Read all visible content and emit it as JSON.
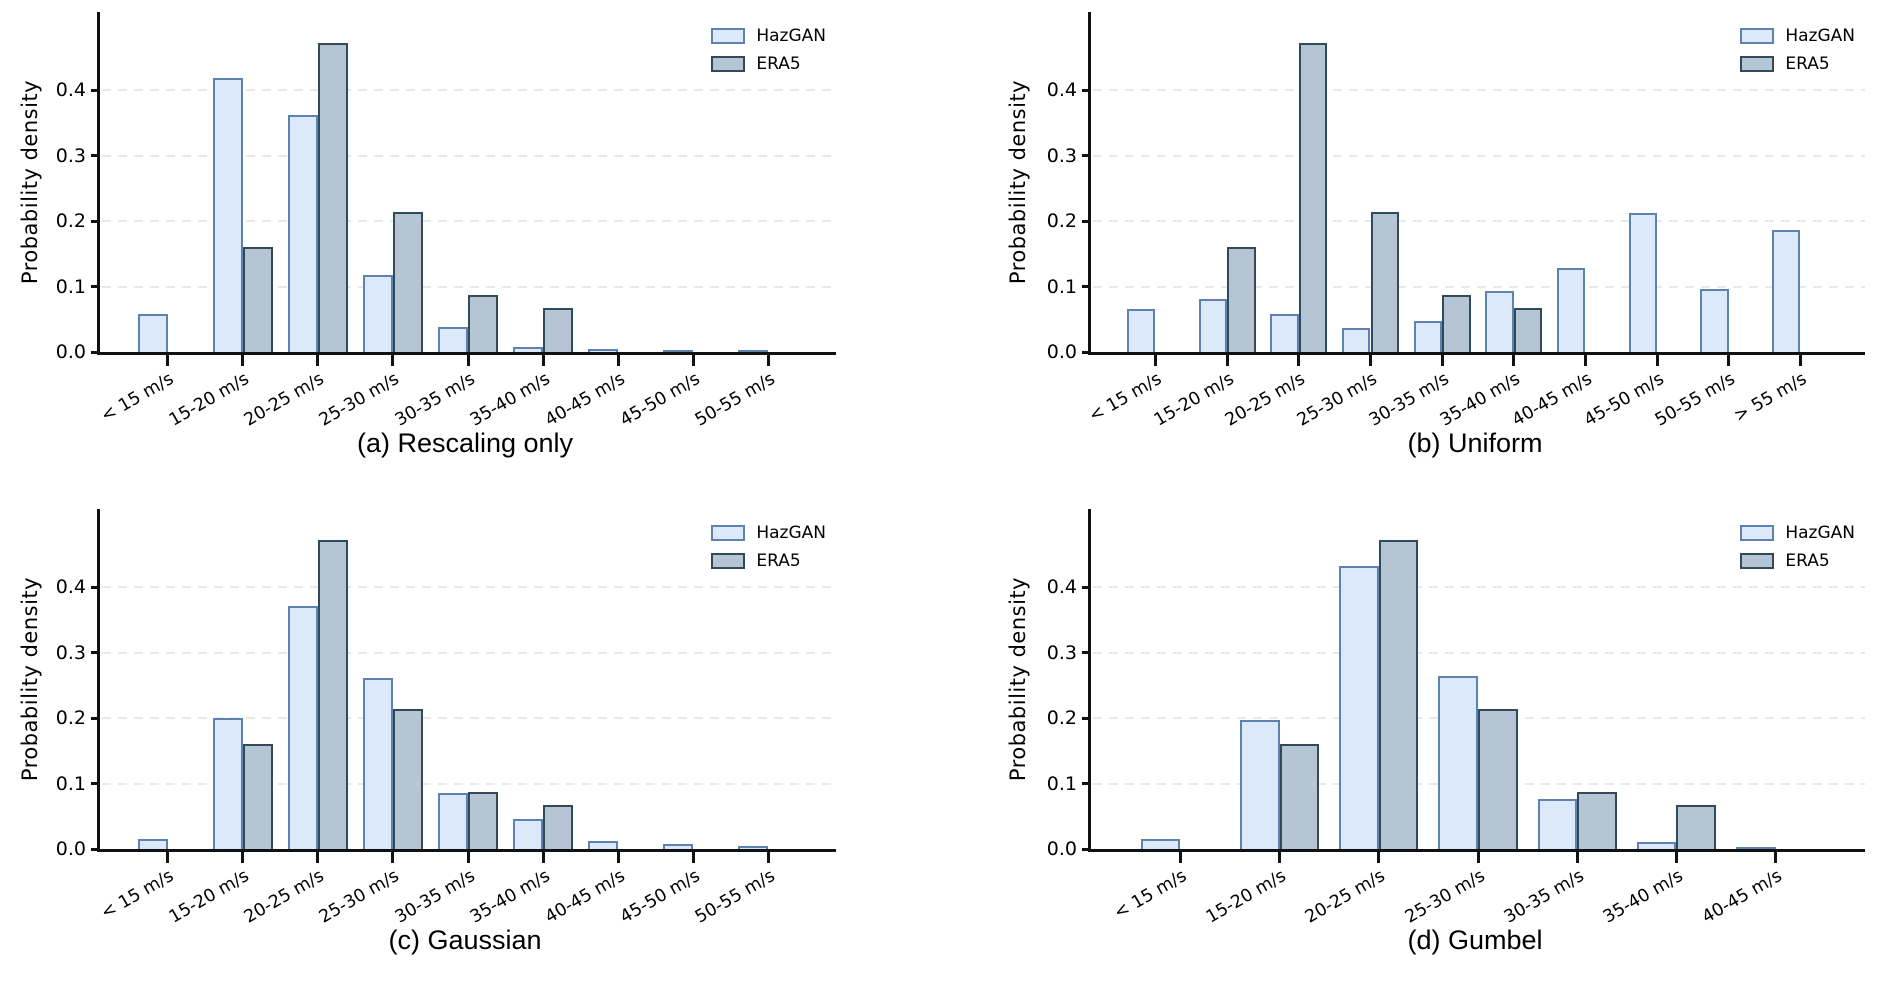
{
  "figure": {
    "ylabel": "Probability density",
    "yticks": [
      {
        "value": 0.0,
        "label": "0.0"
      },
      {
        "value": 0.1,
        "label": "0.1"
      },
      {
        "value": 0.2,
        "label": "0.2"
      },
      {
        "value": 0.3,
        "label": "0.3"
      },
      {
        "value": 0.4,
        "label": "0.4"
      }
    ],
    "legend_labels": [
      "HazGAN",
      "ERA5"
    ],
    "colors": {
      "hazgan_fill": "#dbe9fa",
      "hazgan_edge": "#5d82b2",
      "era5_fill": "#b6c5d3",
      "era5_edge": "#2f4a5a",
      "axis": "#111111",
      "grid": "#e8e8e8",
      "text": "#000000",
      "background": "#ffffff"
    }
  },
  "chart_data": [
    {
      "type": "bar",
      "title": "(a) Rescaling only",
      "ylabel": "Probability density",
      "ylim": [
        0,
        0.52
      ],
      "grid": "dashed-horizontal",
      "legend_position": "top-right",
      "categories": [
        "< 15 m/s",
        "15-20 m/s",
        "20-25 m/s",
        "25-30 m/s",
        "30-35 m/s",
        "35-40 m/s",
        "40-45 m/s",
        "45-50 m/s",
        "50-55 m/s"
      ],
      "series": [
        {
          "name": "HazGAN",
          "values": [
            0.058,
            0.419,
            0.362,
            0.118,
            0.038,
            0.007,
            0.004,
            0.001,
            0.002
          ]
        },
        {
          "name": "ERA5",
          "values": [
            0,
            0.16,
            0.473,
            0.214,
            0.087,
            0.067,
            0,
            0,
            0
          ]
        }
      ]
    },
    {
      "type": "bar",
      "title": "(b) Uniform",
      "ylabel": "Probability density",
      "ylim": [
        0,
        0.52
      ],
      "grid": "dashed-horizontal",
      "legend_position": "top-right",
      "categories": [
        "< 15 m/s",
        "15-20 m/s",
        "20-25 m/s",
        "25-30 m/s",
        "30-35 m/s",
        "35-40 m/s",
        "40-45 m/s",
        "45-50 m/s",
        "50-55 m/s",
        "> 55 m/s"
      ],
      "series": [
        {
          "name": "HazGAN",
          "values": [
            0.066,
            0.081,
            0.058,
            0.036,
            0.048,
            0.094,
            0.128,
            0.213,
            0.097,
            0.187
          ]
        },
        {
          "name": "ERA5",
          "values": [
            0,
            0.16,
            0.473,
            0.214,
            0.087,
            0.067,
            0,
            0,
            0,
            0
          ]
        }
      ]
    },
    {
      "type": "bar",
      "title": "(c) Gaussian",
      "ylabel": "Probability density",
      "ylim": [
        0,
        0.52
      ],
      "grid": "dashed-horizontal",
      "legend_position": "top-right",
      "categories": [
        "< 15 m/s",
        "15-20 m/s",
        "20-25 m/s",
        "25-30 m/s",
        "30-35 m/s",
        "35-40 m/s",
        "40-45 m/s",
        "45-50 m/s",
        "50-55 m/s"
      ],
      "series": [
        {
          "name": "HazGAN",
          "values": [
            0.015,
            0.201,
            0.371,
            0.262,
            0.086,
            0.046,
            0.012,
            0.008,
            0.005
          ]
        },
        {
          "name": "ERA5",
          "values": [
            0,
            0.16,
            0.473,
            0.214,
            0.087,
            0.067,
            0,
            0,
            0
          ]
        }
      ]
    },
    {
      "type": "bar",
      "title": "(d) Gumbel",
      "ylabel": "Probability density",
      "ylim": [
        0,
        0.52
      ],
      "grid": "dashed-horizontal",
      "legend_position": "top-right",
      "categories": [
        "< 15 m/s",
        "15-20 m/s",
        "20-25 m/s",
        "25-30 m/s",
        "30-35 m/s",
        "35-40 m/s",
        "40-45 m/s"
      ],
      "series": [
        {
          "name": "HazGAN",
          "values": [
            0.016,
            0.197,
            0.433,
            0.265,
            0.076,
            0.011,
            0.003
          ]
        },
        {
          "name": "ERA5",
          "values": [
            0,
            0.16,
            0.473,
            0.214,
            0.087,
            0.067,
            0
          ]
        }
      ]
    }
  ]
}
